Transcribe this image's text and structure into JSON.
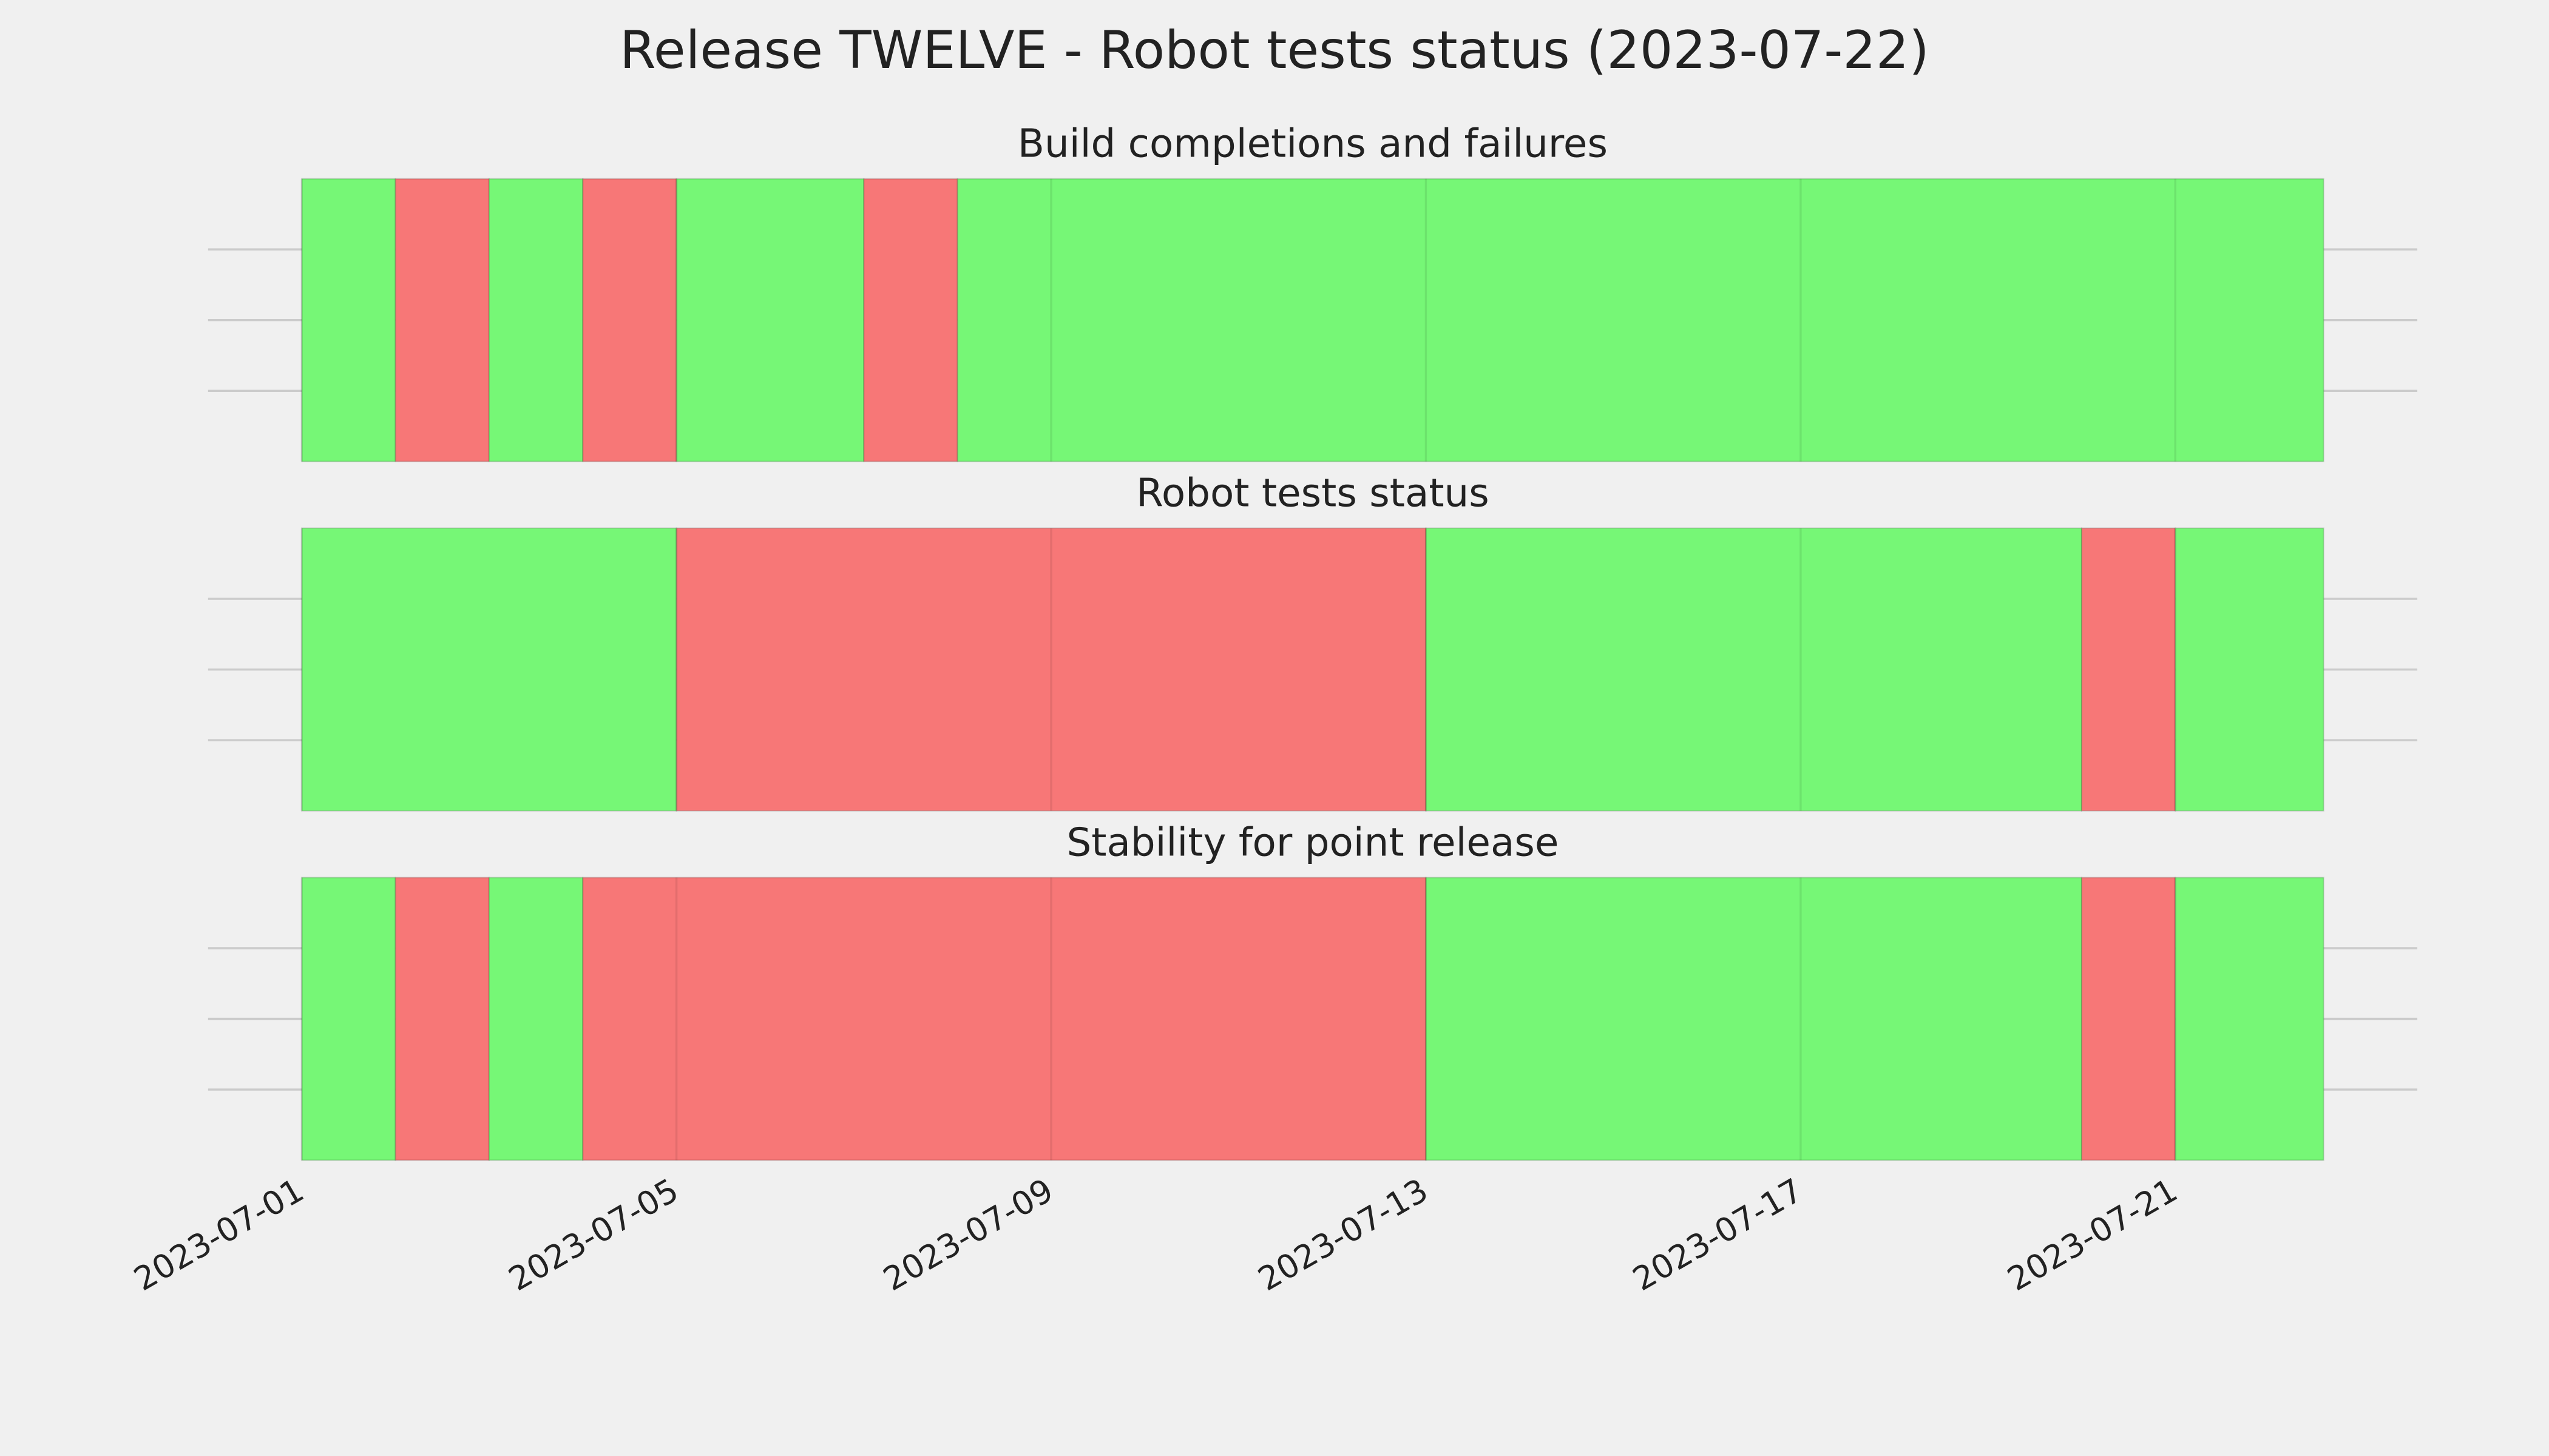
{
  "chart_data": [
    {
      "type": "timeline",
      "suptitle": "Release TWELVE - Robot tests status (2023-07-22)",
      "title": "Build completions and failures",
      "segments": [
        {
          "start": "2023-07-01",
          "end": "2023-07-02",
          "color": "#76f776"
        },
        {
          "start": "2023-07-02",
          "end": "2023-07-03",
          "color": "#f77777"
        },
        {
          "start": "2023-07-03",
          "end": "2023-07-04",
          "color": "#76f776"
        },
        {
          "start": "2023-07-04",
          "end": "2023-07-05",
          "color": "#f77777"
        },
        {
          "start": "2023-07-05",
          "end": "2023-07-07",
          "color": "#76f776"
        },
        {
          "start": "2023-07-07",
          "end": "2023-07-08",
          "color": "#f77777"
        },
        {
          "start": "2023-07-08",
          "end": "2023-07-22T14:00",
          "color": "#76f776"
        }
      ],
      "xlim": [
        "2023-06-30",
        "2023-07-23T14:00"
      ],
      "ylim": [
        0,
        1
      ],
      "yticks": [
        0.25,
        0.5,
        0.75
      ],
      "xticks": [
        "2023-07-01",
        "2023-07-05",
        "2023-07-09",
        "2023-07-13",
        "2023-07-17",
        "2023-07-21"
      ],
      "grid": true
    },
    {
      "type": "timeline",
      "title": "Robot tests status",
      "segments": [
        {
          "start": "2023-07-01",
          "end": "2023-07-05",
          "color": "#76f776"
        },
        {
          "start": "2023-07-05",
          "end": "2023-07-13",
          "color": "#f77777"
        },
        {
          "start": "2023-07-13",
          "end": "2023-07-20",
          "color": "#76f776"
        },
        {
          "start": "2023-07-20",
          "end": "2023-07-21",
          "color": "#f77777"
        },
        {
          "start": "2023-07-21",
          "end": "2023-07-22T14:00",
          "color": "#76f776"
        }
      ],
      "xlim": [
        "2023-06-30",
        "2023-07-23T14:00"
      ],
      "ylim": [
        0,
        1
      ],
      "yticks": [
        0.25,
        0.5,
        0.75
      ],
      "xticks": [
        "2023-07-01",
        "2023-07-05",
        "2023-07-09",
        "2023-07-13",
        "2023-07-17",
        "2023-07-21"
      ],
      "grid": true
    },
    {
      "type": "timeline",
      "title": "Stability for point release",
      "segments": [
        {
          "start": "2023-07-01",
          "end": "2023-07-02",
          "color": "#76f776"
        },
        {
          "start": "2023-07-02",
          "end": "2023-07-03",
          "color": "#f77777"
        },
        {
          "start": "2023-07-03",
          "end": "2023-07-04",
          "color": "#76f776"
        },
        {
          "start": "2023-07-04",
          "end": "2023-07-13",
          "color": "#f77777"
        },
        {
          "start": "2023-07-13",
          "end": "2023-07-20",
          "color": "#76f776"
        },
        {
          "start": "2023-07-20",
          "end": "2023-07-21",
          "color": "#f77777"
        },
        {
          "start": "2023-07-21",
          "end": "2023-07-22T14:00",
          "color": "#76f776"
        }
      ],
      "xlim": [
        "2023-06-30",
        "2023-07-23T14:00"
      ],
      "ylim": [
        0,
        1
      ],
      "yticks": [
        0.25,
        0.5,
        0.75
      ],
      "xticks": [
        "2023-07-01",
        "2023-07-05",
        "2023-07-09",
        "2023-07-13",
        "2023-07-17",
        "2023-07-21"
      ],
      "grid": true,
      "show_xticklabels": true
    }
  ]
}
